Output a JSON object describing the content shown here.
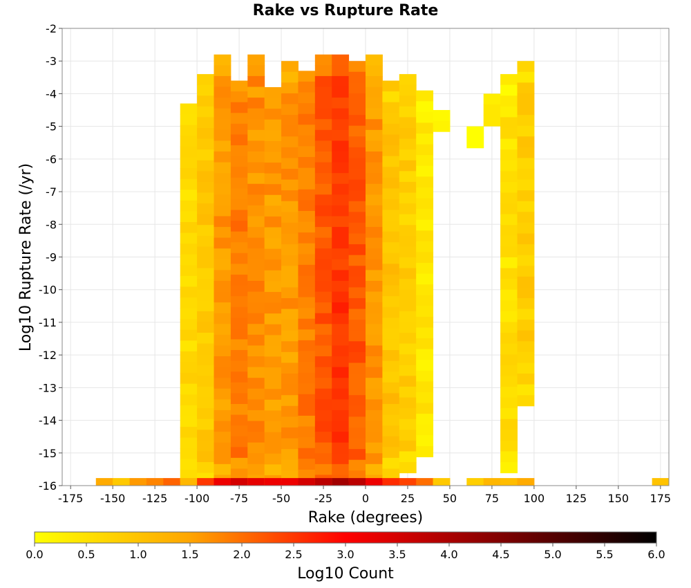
{
  "chart_data": {
    "type": "heatmap",
    "title": "Rake vs Rupture Rate",
    "xlabel": "Rake (degrees)",
    "ylabel": "Log10 Rupture Rate (/yr)",
    "xlim": [
      -180,
      180
    ],
    "ylim": [
      -16,
      -2
    ],
    "x_ticks": [
      "-175",
      "-150",
      "-125",
      "-100",
      "-75",
      "-50",
      "-25",
      "0",
      "25",
      "50",
      "75",
      "100",
      "125",
      "150",
      "175"
    ],
    "y_ticks": [
      "-2",
      "-3",
      "-4",
      "-5",
      "-6",
      "-7",
      "-8",
      "-9",
      "-10",
      "-11",
      "-12",
      "-13",
      "-14",
      "-15",
      "-16"
    ],
    "grid": true,
    "x_bin_width": 10,
    "y_bin_height": 0.33,
    "colorbar": {
      "label": "Log10 Count",
      "range": [
        0,
        6
      ],
      "ticks": [
        "0.0",
        "0.5",
        "1.0",
        "1.5",
        "2.0",
        "2.5",
        "3.0",
        "3.5",
        "4.0",
        "4.5",
        "5.0",
        "5.5",
        "6.0"
      ],
      "colors": [
        "#ffff00",
        "#ffa500",
        "#ff0000",
        "#000000"
      ]
    },
    "columns": [
      {
        "x": -160,
        "y_top": -16,
        "y_bottom": -16,
        "value": 0.8
      },
      {
        "x": -150,
        "y_top": -16,
        "y_bottom": -16,
        "value": 0.3
      },
      {
        "x": -140,
        "y_top": -16,
        "y_bottom": -16,
        "value": 1.0
      },
      {
        "x": -130,
        "y_top": -16,
        "y_bottom": -16,
        "value": 1.2
      },
      {
        "x": -120,
        "y_top": -16,
        "y_bottom": -16,
        "value": 1.5
      },
      {
        "x": -110,
        "y_top": -4.3,
        "y_bottom": -15.9,
        "value": 0.6
      },
      {
        "x": -100,
        "y_top": -3.4,
        "y_bottom": -15.9,
        "value": 0.9
      },
      {
        "x": -90,
        "y_top": -2.8,
        "y_bottom": -15.9,
        "value": 1.6
      },
      {
        "x": -80,
        "y_top": -3.6,
        "y_bottom": -15.9,
        "value": 1.9
      },
      {
        "x": -70,
        "y_top": -2.8,
        "y_bottom": -15.9,
        "value": 1.7
      },
      {
        "x": -60,
        "y_top": -3.8,
        "y_bottom": -15.9,
        "value": 1.6
      },
      {
        "x": -50,
        "y_top": -3.0,
        "y_bottom": -15.9,
        "value": 1.6
      },
      {
        "x": -40,
        "y_top": -3.3,
        "y_bottom": -15.9,
        "value": 1.9
      },
      {
        "x": -30,
        "y_top": -2.8,
        "y_bottom": -15.9,
        "value": 2.2
      },
      {
        "x": -20,
        "y_top": -2.8,
        "y_bottom": -15.9,
        "value": 2.5
      },
      {
        "x": -10,
        "y_top": -3.0,
        "y_bottom": -15.9,
        "value": 2.2
      },
      {
        "x": 0,
        "y_top": -2.8,
        "y_bottom": -15.9,
        "value": 1.6
      },
      {
        "x": 10,
        "y_top": -3.6,
        "y_bottom": -15.9,
        "value": 1.0
      },
      {
        "x": 20,
        "y_top": -3.4,
        "y_bottom": -15.6,
        "value": 0.8
      },
      {
        "x": 30,
        "y_top": -3.9,
        "y_bottom": -15.2,
        "value": 0.4
      },
      {
        "x": 40,
        "y_top": -4.5,
        "y_bottom": -5.2,
        "value": 0.3
      },
      {
        "x": 60,
        "y_top": -5.0,
        "y_bottom": -5.6,
        "value": 0.2
      },
      {
        "x": 70,
        "y_top": -4.0,
        "y_bottom": -4.9,
        "value": 0.6
      },
      {
        "x": 80,
        "y_top": -3.4,
        "y_bottom": -15.7,
        "value": 0.5
      },
      {
        "x": 90,
        "y_top": -3.0,
        "y_bottom": -13.6,
        "value": 0.8
      }
    ]
  }
}
